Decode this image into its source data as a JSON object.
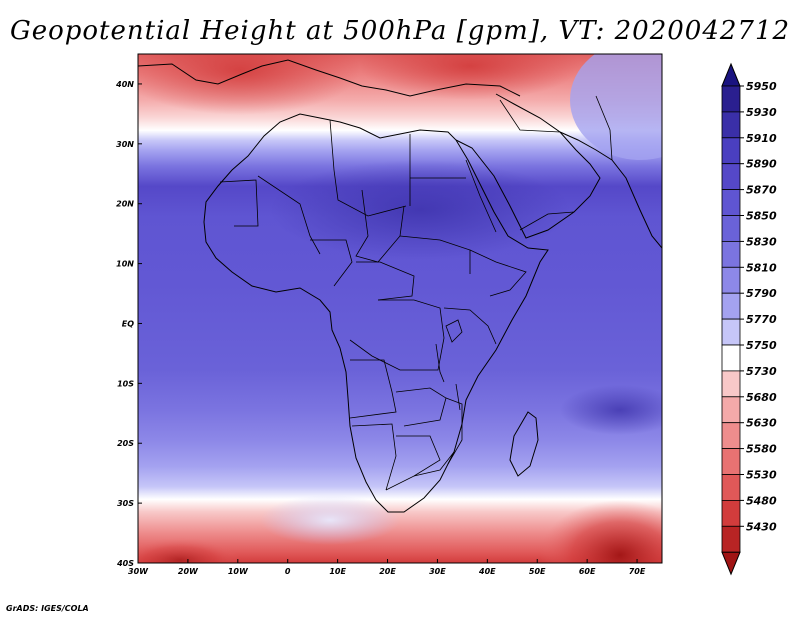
{
  "title": "Geopotential Height at 500hPa [gpm], VT: 2020042712",
  "footer": "GrADS: IGES/COLA",
  "map": {
    "lon_labels": [
      "30W",
      "20W",
      "10W",
      "0",
      "10E",
      "20E",
      "30E",
      "40E",
      "50E",
      "60E",
      "70E"
    ],
    "lat_labels": [
      "40N",
      "30N",
      "20N",
      "10N",
      "EQ",
      "10S",
      "20S",
      "30S",
      "40S"
    ]
  },
  "colorbar": {
    "levels": [
      "5950",
      "5930",
      "5910",
      "5890",
      "5870",
      "5850",
      "5830",
      "5810",
      "5790",
      "5770",
      "5750",
      "5730",
      "5680",
      "5630",
      "5580",
      "5530",
      "5480",
      "5430"
    ],
    "colors": [
      "#2a1f8f",
      "#3a2fa8",
      "#4a3fc0",
      "#5548c8",
      "#5f55d2",
      "#6a62d8",
      "#7b74e0",
      "#8d88e8",
      "#a4a2f0",
      "#c6c6f8",
      "#ffffff",
      "#f8c8c8",
      "#f3a9a9",
      "#ee8d8d",
      "#e87272",
      "#e05858",
      "#d23c3c",
      "#b82424"
    ],
    "cap_top_color": "#1a1380",
    "cap_bottom_color": "#a01414"
  }
}
